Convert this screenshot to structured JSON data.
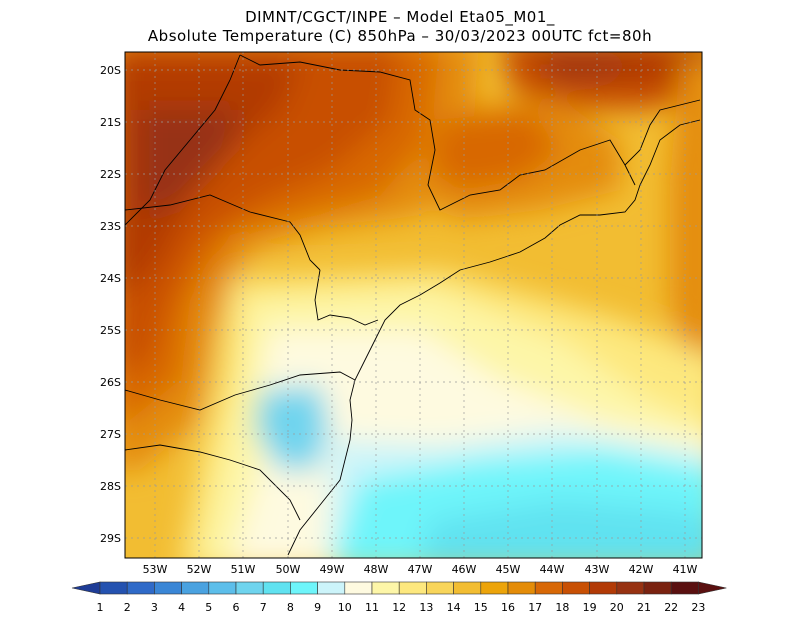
{
  "header": {
    "line1": "DIMNT/CGCT/INPE –  Model Eta05_M01_",
    "line2": "Absolute Temperature (C) 850hPa –  30/03/2023 00UTC fct=80h"
  },
  "map": {
    "lon_range": [
      -53.8,
      -40.7
    ],
    "lat_range": [
      -29.4,
      -19.8
    ],
    "lat_ticks": [
      "20S",
      "21S",
      "22S",
      "23S",
      "24S",
      "25S",
      "26S",
      "27S",
      "28S",
      "29S"
    ],
    "lon_ticks": [
      "53W",
      "52W",
      "51W",
      "50W",
      "49W",
      "48W",
      "47W",
      "46W",
      "45W",
      "44W",
      "43W",
      "42W",
      "41W"
    ],
    "grid": "dotted"
  },
  "colorbar": {
    "labels": [
      "1",
      "2",
      "3",
      "4",
      "5",
      "6",
      "7",
      "8",
      "9",
      "10",
      "11",
      "12",
      "13",
      "14",
      "15",
      "16",
      "17",
      "18",
      "19",
      "20",
      "21",
      "22",
      "23"
    ],
    "colors": [
      "#1e3c96",
      "#2452b0",
      "#2f6ac8",
      "#3a86d6",
      "#4aa2e0",
      "#5cbeea",
      "#6fd4ee",
      "#60e2f0",
      "#6ef5fa",
      "#ccf4fa",
      "#fefae0",
      "#fdf6a8",
      "#fde87e",
      "#f8d55a",
      "#f2bd32",
      "#eca40a",
      "#e48c08",
      "#d86806",
      "#c85004",
      "#b23a06",
      "#973212",
      "#7a2210",
      "#5a1010"
    ]
  }
}
